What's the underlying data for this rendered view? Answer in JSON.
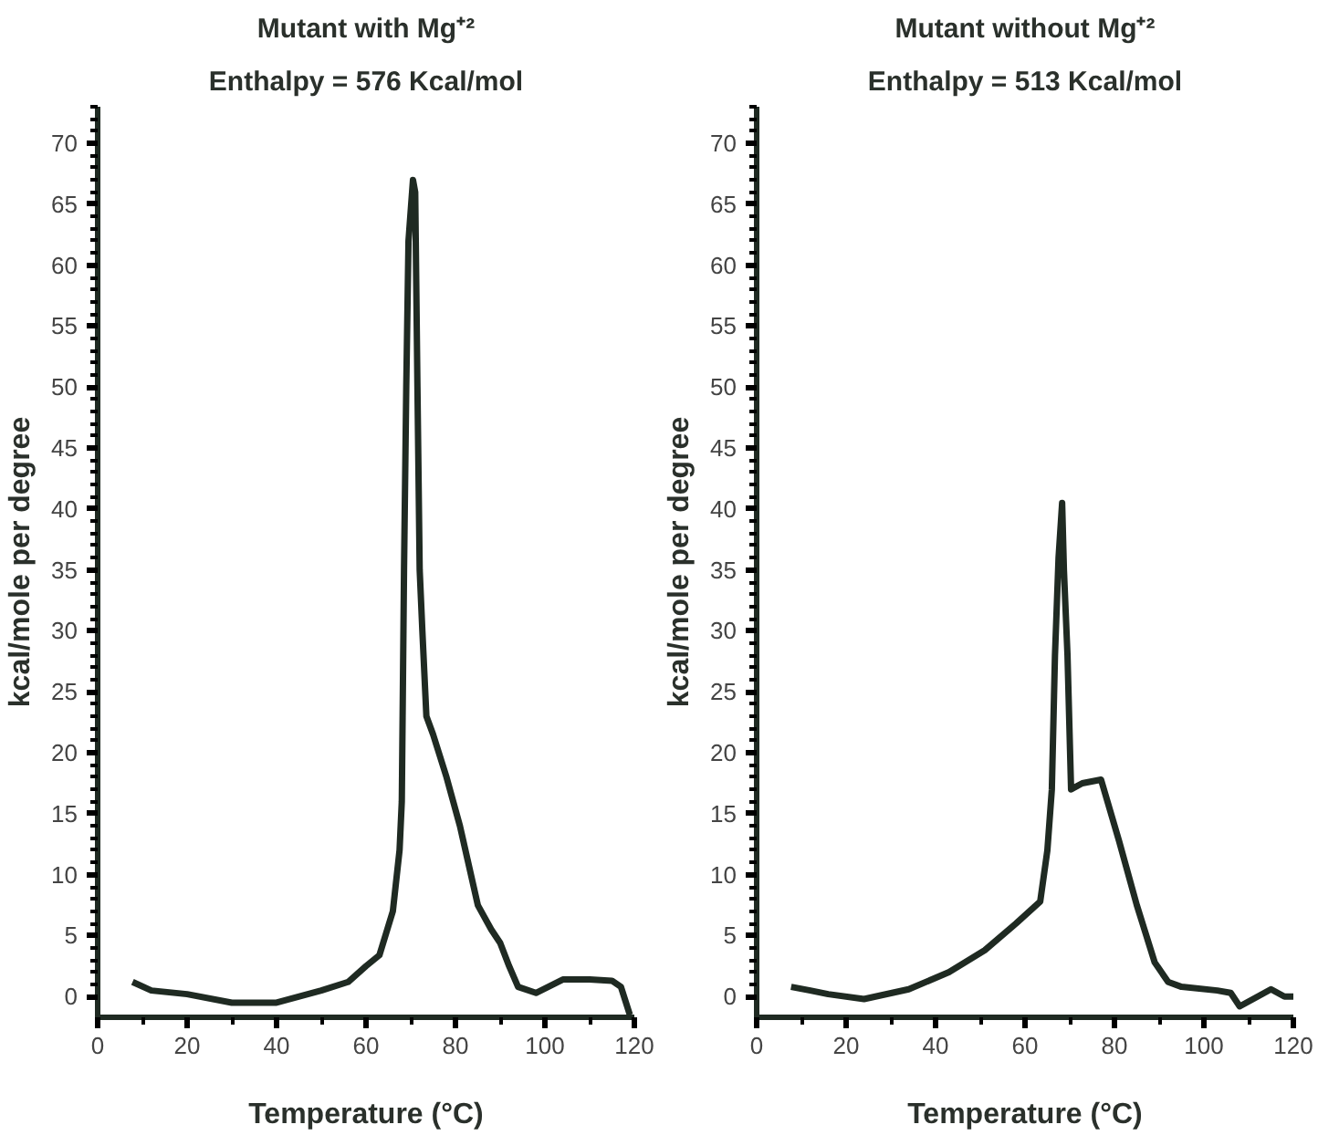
{
  "chart_data": [
    {
      "type": "line",
      "title": "Mutant with Mg⁺²",
      "subtitle": "Enthalpy = 576 Kcal/mol",
      "xlabel": "Temperature (°C)",
      "ylabel": "kcal/mole per degree",
      "x": [
        7.8,
        12,
        20,
        30,
        40,
        50,
        56,
        60,
        63,
        66,
        67.5,
        68,
        68.5,
        69,
        69.5,
        70.5,
        71,
        71.5,
        72,
        72.6,
        73.5,
        75,
        78,
        81,
        85,
        88,
        90,
        92,
        94,
        98,
        104,
        110,
        115,
        117,
        119
      ],
      "series": [
        {
          "color": "#1f2a22",
          "values": [
            1.2,
            0.5,
            0.2,
            -0.5,
            -0.5,
            0.5,
            1.2,
            2.5,
            3.4,
            7,
            12,
            16,
            35,
            50,
            62,
            67,
            66,
            50,
            35,
            30,
            23,
            21.5,
            18,
            14,
            7.5,
            5.5,
            4.4,
            2.5,
            0.8,
            0.3,
            1.4,
            1.4,
            1.3,
            0.8,
            -1.5
          ]
        }
      ],
      "xlim": [
        0,
        120
      ],
      "ylim": [
        -1.7,
        73
      ],
      "xticks": [
        0,
        20,
        40,
        60,
        80,
        100,
        120
      ],
      "yticks": [
        0,
        5,
        10,
        15,
        20,
        25,
        30,
        35,
        40,
        45,
        50,
        55,
        60,
        65,
        70
      ],
      "grid": false,
      "line_style": "solid",
      "marker": "none"
    },
    {
      "type": "line",
      "title": "Mutant without Mg⁺²",
      "subtitle": "Enthalpy = 513 Kcal/mol",
      "xlabel": "Temperature (°C)",
      "ylabel": "kcal/mole per degree",
      "x": [
        7.7,
        12,
        16,
        24,
        34,
        43,
        51,
        58,
        63.4,
        65,
        66,
        66.7,
        67.5,
        68.3,
        68.7,
        69.5,
        70.3,
        72.8,
        77,
        81,
        85,
        89,
        92,
        95,
        103,
        106,
        108,
        111,
        115,
        118,
        120
      ],
      "series": [
        {
          "color": "#1f2a22",
          "values": [
            0.8,
            0.5,
            0.2,
            -0.2,
            0.6,
            2,
            3.8,
            6,
            7.8,
            12,
            17,
            28,
            36,
            40.5,
            35,
            28,
            17,
            17.5,
            17.8,
            12.8,
            7.5,
            2.8,
            1.2,
            0.8,
            0.5,
            0.3,
            -0.8,
            -0.2,
            0.6,
            0,
            0
          ]
        }
      ],
      "xlim": [
        0,
        120
      ],
      "ylim": [
        -1.7,
        73
      ],
      "xticks": [
        0,
        20,
        40,
        60,
        80,
        100,
        120
      ],
      "yticks": [
        0,
        5,
        10,
        15,
        20,
        25,
        30,
        35,
        40,
        45,
        50,
        55,
        60,
        65,
        70
      ],
      "grid": false,
      "line_style": "solid",
      "marker": "none"
    }
  ]
}
